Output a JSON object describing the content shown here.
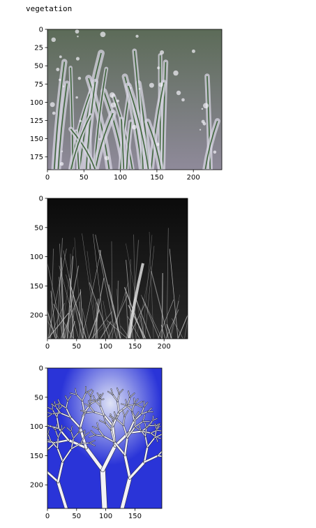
{
  "output": {
    "printed_text": "vegetation"
  },
  "figures": [
    {
      "image_description": "Close-up of grass blades encased in clear ice, greenish-purple tones",
      "x_ticks": [
        "0",
        "50",
        "100",
        "150",
        "200"
      ],
      "y_ticks": [
        "0",
        "25",
        "50",
        "75",
        "100",
        "125",
        "150",
        "175"
      ],
      "colors": {
        "base": "#8f8a9a",
        "top": "#5c6b58",
        "blade": "#2f5a2a",
        "ice": "#d7d4e2"
      }
    },
    {
      "image_description": "Grayscale photo of dry grass and bare twigs at night",
      "x_ticks": [
        "0",
        "50",
        "100",
        "150",
        "200"
      ],
      "y_ticks": [
        "0",
        "50",
        "100",
        "150",
        "200"
      ],
      "colors": {
        "base": "#2a2a2a",
        "top": "#0b0b0b",
        "strand": "#cfcfcf"
      }
    },
    {
      "image_description": "Frosted bare tree branches against a deep blue sky",
      "x_ticks": [
        "0",
        "50",
        "100",
        "150"
      ],
      "y_ticks": [
        "0",
        "50",
        "100",
        "150",
        "200"
      ],
      "colors": {
        "sky": "#2a34d8",
        "sky_light": "#dfe3f5",
        "branch": "#f2f2f6",
        "bark": "#2a2a3a"
      }
    }
  ]
}
